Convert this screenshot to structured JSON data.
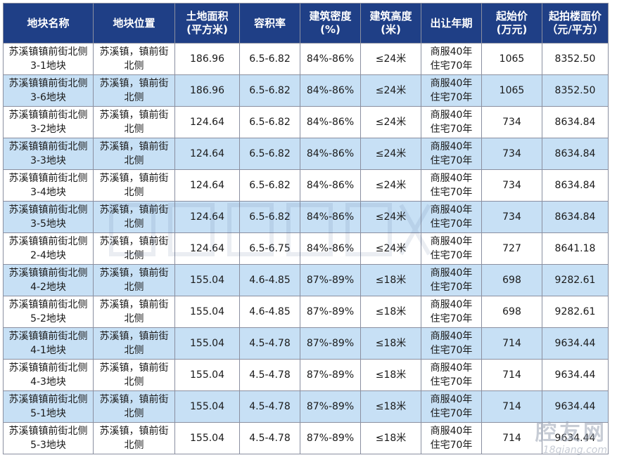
{
  "table": {
    "headers": [
      [
        "地块名称"
      ],
      [
        "地块位置"
      ],
      [
        "土地面积",
        "(平方米)"
      ],
      [
        "容积率"
      ],
      [
        "建筑密度",
        "(%)"
      ],
      [
        "建筑高度",
        "(米)"
      ],
      [
        "出让年期"
      ],
      [
        "起始价",
        "(万元)"
      ],
      [
        "起拍楼面价",
        "（元/平方）"
      ]
    ],
    "rows": [
      {
        "name": [
          "苏溪镇镇前街北侧",
          "3-1地块"
        ],
        "location": [
          "苏溪镇，镇前街",
          "北侧"
        ],
        "area": "186.96",
        "far": "6.5-6.82",
        "density": "84%-86%",
        "height": "≤24米",
        "term": [
          "商服40年",
          "住宅70年"
        ],
        "start_price": "1065",
        "floor_price": "8352.50"
      },
      {
        "name": [
          "苏溪镇镇前街北侧",
          "3-6地块"
        ],
        "location": [
          "苏溪镇，镇前街",
          "北侧"
        ],
        "area": "186.96",
        "far": "6.5-6.82",
        "density": "84%-86%",
        "height": "≤24米",
        "term": [
          "商服40年",
          "住宅70年"
        ],
        "start_price": "1065",
        "floor_price": "8352.50"
      },
      {
        "name": [
          "苏溪镇镇前街北侧",
          "3-2地块"
        ],
        "location": [
          "苏溪镇，镇前街",
          "北侧"
        ],
        "area": "124.64",
        "far": "6.5-6.82",
        "density": "84%-86%",
        "height": "≤24米",
        "term": [
          "商服40年",
          "住宅70年"
        ],
        "start_price": "734",
        "floor_price": "8634.84"
      },
      {
        "name": [
          "苏溪镇镇前街北侧",
          "3-3地块"
        ],
        "location": [
          "苏溪镇，镇前街",
          "北侧"
        ],
        "area": "124.64",
        "far": "6.5-6.82",
        "density": "84%-86%",
        "height": "≤24米",
        "term": [
          "商服40年",
          "住宅70年"
        ],
        "start_price": "734",
        "floor_price": "8634.84"
      },
      {
        "name": [
          "苏溪镇镇前街北侧",
          "3-4地块"
        ],
        "location": [
          "苏溪镇，镇前街",
          "北侧"
        ],
        "area": "124.64",
        "far": "6.5-6.82",
        "density": "84%-86%",
        "height": "≤24米",
        "term": [
          "商服40年",
          "住宅70年"
        ],
        "start_price": "734",
        "floor_price": "8634.84"
      },
      {
        "name": [
          "苏溪镇镇前街北侧",
          "3-5地块"
        ],
        "location": [
          "苏溪镇，镇前街",
          "北侧"
        ],
        "area": "124.64",
        "far": "6.5-6.82",
        "density": "84%-86%",
        "height": "≤24米",
        "term": [
          "商服40年",
          "住宅70年"
        ],
        "start_price": "734",
        "floor_price": "8634.84"
      },
      {
        "name": [
          "苏溪镇镇前街北侧",
          "2-4地块"
        ],
        "location": [
          "苏溪镇，镇前街",
          "北侧"
        ],
        "area": "124.64",
        "far": "6.5-6.75",
        "density": "84%-86%",
        "height": "≤24米",
        "term": [
          "商服40年",
          "住宅70年"
        ],
        "start_price": "727",
        "floor_price": "8641.18"
      },
      {
        "name": [
          "苏溪镇镇前街北侧",
          "4-2地块"
        ],
        "location": [
          "苏溪镇，镇前街",
          "北侧"
        ],
        "area": "155.04",
        "far": "4.6-4.85",
        "density": "87%-89%",
        "height": "≤18米",
        "term": [
          "商服40年",
          "住宅70年"
        ],
        "start_price": "698",
        "floor_price": "9282.61"
      },
      {
        "name": [
          "苏溪镇镇前街北侧",
          "5-2地块"
        ],
        "location": [
          "苏溪镇，镇前街",
          "北侧"
        ],
        "area": "155.04",
        "far": "4.6-4.85",
        "density": "87%-89%",
        "height": "≤18米",
        "term": [
          "商服40年",
          "住宅70年"
        ],
        "start_price": "698",
        "floor_price": "9282.61"
      },
      {
        "name": [
          "苏溪镇镇前街北侧",
          "4-1地块"
        ],
        "location": [
          "苏溪镇，镇前街",
          "北侧"
        ],
        "area": "155.04",
        "far": "4.5-4.78",
        "density": "87%-89%",
        "height": "≤18米",
        "term": [
          "商服40年",
          "住宅70年"
        ],
        "start_price": "714",
        "floor_price": "9634.44"
      },
      {
        "name": [
          "苏溪镇镇前街北侧",
          "4-3地块"
        ],
        "location": [
          "苏溪镇，镇前街",
          "北侧"
        ],
        "area": "155.04",
        "far": "4.5-4.78",
        "density": "87%-89%",
        "height": "≤18米",
        "term": [
          "商服40年",
          "住宅70年"
        ],
        "start_price": "714",
        "floor_price": "9634.44"
      },
      {
        "name": [
          "苏溪镇镇前街北侧",
          "5-1地块"
        ],
        "location": [
          "苏溪镇，镇前街",
          "北侧"
        ],
        "area": "155.04",
        "far": "4.5-4.78",
        "density": "87%-89%",
        "height": "≤18米",
        "term": [
          "商服40年",
          "住宅70年"
        ],
        "start_price": "714",
        "floor_price": "9634.44"
      },
      {
        "name": [
          "苏溪镇镇前街北侧",
          "5-3地块"
        ],
        "location": [
          "苏溪镇，镇前街",
          "北侧"
        ],
        "area": "155.04",
        "far": "4.5-4.78",
        "density": "87%-89%",
        "height": "≤18米",
        "term": [
          "商服40年",
          "住宅70年"
        ],
        "start_price": "714",
        "floor_price": "9634.44"
      }
    ]
  },
  "watermark": {
    "corner_brand": "腔友网",
    "corner_url": "18qiang.com"
  },
  "colors": {
    "header_bg": "#1f3f86",
    "header_text": "#ffffff",
    "row_alt_bg": "#c7e0f5",
    "border": "#8a8fa0"
  }
}
